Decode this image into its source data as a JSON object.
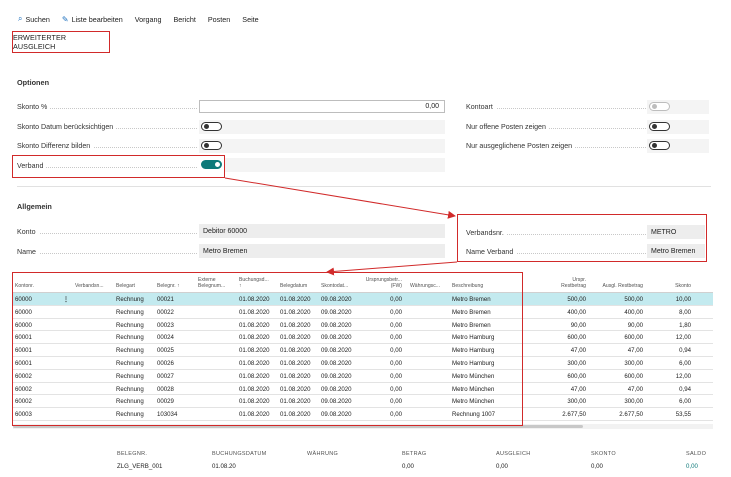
{
  "toolbar": {
    "items": [
      {
        "label": "Suchen",
        "icon": "search-icon"
      },
      {
        "label": "Liste bearbeiten",
        "icon": "edit-list-icon"
      },
      {
        "label": "Vorgang"
      },
      {
        "label": "Bericht"
      },
      {
        "label": "Posten"
      },
      {
        "label": "Seite"
      }
    ]
  },
  "page_title": "ERWEITERTER AUSGLEICH",
  "optionen": {
    "title": "Optionen",
    "skonto_pct": {
      "label": "Skonto %",
      "value": "0,00"
    },
    "skonto_datum": {
      "label": "Skonto Datum berücksichtigen",
      "on": false
    },
    "skonto_diff": {
      "label": "Skonto Differenz bilden",
      "on": false
    },
    "verband": {
      "label": "Verband",
      "on": true
    },
    "kontoart": {
      "label": "Kontoart",
      "on": false,
      "disabled": true
    },
    "nur_offene": {
      "label": "Nur offene Posten zeigen",
      "on": false
    },
    "nur_ausgeglichene": {
      "label": "Nur ausgeglichene Posten zeigen",
      "on": false
    }
  },
  "allgemein": {
    "title": "Allgemein",
    "konto": {
      "label": "Konto",
      "value": "Debitor 60000"
    },
    "name": {
      "label": "Name",
      "value": "Metro Bremen"
    },
    "verbandsnr": {
      "label": "Verbandsnr.",
      "value": "METRO"
    },
    "name_verband": {
      "label": "Name Verband",
      "value": "Metro Bremen"
    }
  },
  "table": {
    "headers": {
      "kontonr": "Kontonr.",
      "verbandsnr": "Verbandsn...",
      "belegart": "Belegart",
      "belegnr": "Belegnr. ↑",
      "extern": [
        "Externe",
        "Belegnum..."
      ],
      "buchungsdatum": [
        "Buchungsd...",
        "↑"
      ],
      "belegdatum": "Belegdatum",
      "skontodatum": "Skontodat...",
      "ursprung": [
        "Ursprungsbetr...",
        "(FW)"
      ],
      "waehrung": "Währungsc...",
      "beschreibung": "Beschreibung",
      "urspr_rest": [
        "Urspr.",
        "Restbetrag"
      ],
      "ausgl_rest": "Ausgl. Restbetrag",
      "skonto": "Skonto"
    },
    "rows": [
      {
        "kontonr": "60000",
        "belegart": "Rechnung",
        "belegnr": "00021",
        "buchungsdatum": "01.08.2020",
        "belegdatum": "01.08.2020",
        "skontodatum": "09.08.2020",
        "ursprung": "0,00",
        "beschreibung": "Metro Bremen",
        "urspr_rest": "500,00",
        "ausgl_rest": "500,00",
        "skonto": "10,00",
        "selected": true
      },
      {
        "kontonr": "60000",
        "belegart": "Rechnung",
        "belegnr": "00022",
        "buchungsdatum": "01.08.2020",
        "belegdatum": "01.08.2020",
        "skontodatum": "09.08.2020",
        "ursprung": "0,00",
        "beschreibung": "Metro Bremen",
        "urspr_rest": "400,00",
        "ausgl_rest": "400,00",
        "skonto": "8,00"
      },
      {
        "kontonr": "60000",
        "belegart": "Rechnung",
        "belegnr": "00023",
        "buchungsdatum": "01.08.2020",
        "belegdatum": "01.08.2020",
        "skontodatum": "09.08.2020",
        "ursprung": "0,00",
        "beschreibung": "Metro Bremen",
        "urspr_rest": "90,00",
        "ausgl_rest": "90,00",
        "skonto": "1,80"
      },
      {
        "kontonr": "60001",
        "belegart": "Rechnung",
        "belegnr": "00024",
        "buchungsdatum": "01.08.2020",
        "belegdatum": "01.08.2020",
        "skontodatum": "09.08.2020",
        "ursprung": "0,00",
        "beschreibung": "Metro Hamburg",
        "urspr_rest": "600,00",
        "ausgl_rest": "600,00",
        "skonto": "12,00"
      },
      {
        "kontonr": "60001",
        "belegart": "Rechnung",
        "belegnr": "00025",
        "buchungsdatum": "01.08.2020",
        "belegdatum": "01.08.2020",
        "skontodatum": "09.08.2020",
        "ursprung": "0,00",
        "beschreibung": "Metro Hamburg",
        "urspr_rest": "47,00",
        "ausgl_rest": "47,00",
        "skonto": "0,94"
      },
      {
        "kontonr": "60001",
        "belegart": "Rechnung",
        "belegnr": "00026",
        "buchungsdatum": "01.08.2020",
        "belegdatum": "01.08.2020",
        "skontodatum": "09.08.2020",
        "ursprung": "0,00",
        "beschreibung": "Metro Hamburg",
        "urspr_rest": "300,00",
        "ausgl_rest": "300,00",
        "skonto": "6,00"
      },
      {
        "kontonr": "60002",
        "belegart": "Rechnung",
        "belegnr": "00027",
        "buchungsdatum": "01.08.2020",
        "belegdatum": "01.08.2020",
        "skontodatum": "09.08.2020",
        "ursprung": "0,00",
        "beschreibung": "Metro München",
        "urspr_rest": "600,00",
        "ausgl_rest": "600,00",
        "skonto": "12,00"
      },
      {
        "kontonr": "60002",
        "belegart": "Rechnung",
        "belegnr": "00028",
        "buchungsdatum": "01.08.2020",
        "belegdatum": "01.08.2020",
        "skontodatum": "09.08.2020",
        "ursprung": "0,00",
        "beschreibung": "Metro München",
        "urspr_rest": "47,00",
        "ausgl_rest": "47,00",
        "skonto": "0,94"
      },
      {
        "kontonr": "60002",
        "belegart": "Rechnung",
        "belegnr": "00029",
        "buchungsdatum": "01.08.2020",
        "belegdatum": "01.08.2020",
        "skontodatum": "09.08.2020",
        "ursprung": "0,00",
        "beschreibung": "Metro München",
        "urspr_rest": "300,00",
        "ausgl_rest": "300,00",
        "skonto": "6,00"
      },
      {
        "kontonr": "60003",
        "belegart": "Rechnung",
        "belegnr": "103034",
        "buchungsdatum": "01.08.2020",
        "belegdatum": "01.08.2020",
        "skontodatum": "09.08.2020",
        "ursprung": "0,00",
        "beschreibung": "Rechnung 1007",
        "urspr_rest": "2.677,50",
        "ausgl_rest": "2.677,50",
        "skonto": "53,55"
      }
    ],
    "row_menu_glyph": "⋮"
  },
  "footer": {
    "belegnr": {
      "label": "BELEGNR.",
      "value": "ZLG_VERB_001"
    },
    "buchungsdatum": {
      "label": "BUCHUNGSDATUM",
      "value": "01.08.20"
    },
    "waehrung": {
      "label": "WÄHRUNG",
      "value": ""
    },
    "betrag": {
      "label": "BETRAG",
      "value": "0,00"
    },
    "ausgleich": {
      "label": "AUSGLEICH",
      "value": "0,00"
    },
    "skonto": {
      "label": "SKONTO",
      "value": "0,00"
    },
    "saldo": {
      "label": "SALDO",
      "value": "0,00"
    }
  },
  "colors": {
    "accent": "#0e7a7a",
    "highlight": "#d12a2a",
    "selected_row": "#c3eaef"
  }
}
